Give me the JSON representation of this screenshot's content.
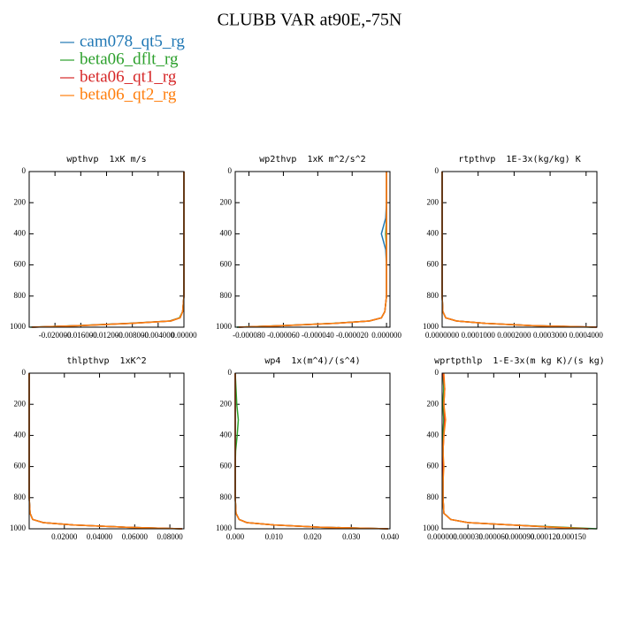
{
  "title": "CLUBB VAR at90E,-75N",
  "legend": [
    {
      "name": "cam078_qt5_rg",
      "color": "#1f77b4"
    },
    {
      "name": "beta06_dflt_rg",
      "color": "#2ca02c"
    },
    {
      "name": "beta06_qt1_rg",
      "color": "#d62728"
    },
    {
      "name": "beta06_qt2_rg",
      "color": "#ff7f0e"
    }
  ],
  "y": [
    0,
    100,
    200,
    300,
    400,
    500,
    600,
    700,
    800,
    900,
    940,
    960,
    975,
    990,
    1000
  ],
  "chart_data": [
    {
      "type": "line",
      "title": "wpthvp  1xK m/s",
      "xlim": [
        -0.024,
        0
      ],
      "ylim": [
        0,
        1000
      ],
      "invert_y": true,
      "xticks": [
        {
          "value": -0.02,
          "label": "-0.020000"
        },
        {
          "value": -0.016,
          "label": "-0.016000"
        },
        {
          "value": -0.012,
          "label": "-0.012000"
        },
        {
          "value": -0.008,
          "label": "-0.008000"
        },
        {
          "value": -0.004,
          "label": "-0.004000"
        },
        {
          "value": 0,
          "label": "0.00000"
        }
      ],
      "yticks": [
        0,
        200,
        400,
        600,
        800,
        1000
      ],
      "series": [
        {
          "values": [
            0,
            0,
            0,
            0,
            0,
            0,
            0,
            0,
            0,
            -0.0002,
            -0.0006,
            -0.002,
            -0.008,
            -0.016,
            -0.0235
          ]
        },
        {
          "values": [
            0,
            0,
            0,
            0,
            0,
            0,
            0,
            0,
            0,
            -0.0002,
            -0.0007,
            -0.0022,
            -0.0085,
            -0.0165,
            -0.0238
          ]
        },
        {
          "values": [
            0,
            0,
            0,
            0,
            0,
            0,
            0,
            0,
            0,
            -0.0002,
            -0.0006,
            -0.0021,
            -0.0082,
            -0.0162,
            -0.0236
          ]
        },
        {
          "values": [
            0,
            0,
            0,
            0,
            0,
            0,
            0,
            0,
            0,
            -0.0002,
            -0.0006,
            -0.002,
            -0.008,
            -0.016,
            -0.0235
          ]
        }
      ]
    },
    {
      "type": "line",
      "title": "wp2thvp  1xK m^2/s^2",
      "xlim": [
        -8.8e-05,
        2e-06
      ],
      "ylim": [
        0,
        1000
      ],
      "invert_y": true,
      "xticks": [
        {
          "value": -8e-05,
          "label": "-0.000080"
        },
        {
          "value": -6e-05,
          "label": "-0.000060"
        },
        {
          "value": -4e-05,
          "label": "-0.000040"
        },
        {
          "value": -2e-05,
          "label": "-0.000020"
        },
        {
          "value": 0,
          "label": "0.000000"
        }
      ],
      "yticks": [
        0,
        200,
        400,
        600,
        800,
        1000
      ],
      "series": [
        {
          "values": [
            0,
            0,
            0,
            -5e-07,
            -3e-06,
            -5e-07,
            0,
            0,
            0,
            -1e-06,
            -3e-06,
            -1e-05,
            -3e-05,
            -6e-05,
            -8.7e-05
          ]
        },
        {
          "values": [
            0,
            0,
            0,
            0,
            -5e-07,
            0,
            0,
            0,
            0,
            -1e-06,
            -3e-06,
            -1e-05,
            -3.1e-05,
            -6.1e-05,
            -8.7e-05
          ]
        },
        {
          "values": [
            0,
            0,
            0,
            0,
            0,
            0,
            0,
            0,
            0,
            -1e-06,
            -3e-06,
            -1e-05,
            -3e-05,
            -6e-05,
            -8.6e-05
          ]
        },
        {
          "values": [
            0,
            0,
            0,
            0,
            0,
            0,
            0,
            0,
            0,
            -1e-06,
            -3e-06,
            -1e-05,
            -3e-05,
            -6e-05,
            -8.6e-05
          ]
        }
      ]
    },
    {
      "type": "line",
      "title": "rtpthvp  1E-3x(kg/kg) K",
      "xlim": [
        0,
        0.00043
      ],
      "ylim": [
        0,
        1000
      ],
      "invert_y": true,
      "xticks": [
        {
          "value": 0,
          "label": "0.0000000"
        },
        {
          "value": 0.0001,
          "label": "0.0001000"
        },
        {
          "value": 0.0002,
          "label": "0.0002000"
        },
        {
          "value": 0.0003,
          "label": "0.0003000"
        },
        {
          "value": 0.0004,
          "label": "0.0004000"
        }
      ],
      "yticks": [
        0,
        200,
        400,
        600,
        800,
        1000
      ],
      "series": [
        {
          "values": [
            0,
            0,
            0,
            0,
            0,
            0,
            0,
            0,
            0,
            2e-06,
            1e-05,
            4e-05,
            0.00012,
            0.00025,
            0.00043
          ]
        },
        {
          "values": [
            0,
            0,
            0,
            0,
            0,
            0,
            0,
            0,
            0,
            2e-06,
            1e-05,
            4e-05,
            0.00012,
            0.00025,
            0.00042
          ]
        },
        {
          "values": [
            0,
            0,
            0,
            0,
            0,
            0,
            0,
            0,
            0,
            2e-06,
            1e-05,
            4e-05,
            0.00012,
            0.00025,
            0.00043
          ]
        },
        {
          "values": [
            0,
            0,
            0,
            0,
            0,
            0,
            0,
            0,
            0,
            2e-06,
            1e-05,
            4e-05,
            0.00012,
            0.00025,
            0.00043
          ]
        }
      ]
    },
    {
      "type": "line",
      "title": "thlpthvp  1xK^2",
      "xlim": [
        0,
        0.088
      ],
      "ylim": [
        0,
        1000
      ],
      "invert_y": true,
      "xticks": [
        {
          "value": 0.02,
          "label": "0.02000"
        },
        {
          "value": 0.04,
          "label": "0.04000"
        },
        {
          "value": 0.06,
          "label": "0.06000"
        },
        {
          "value": 0.08,
          "label": "0.08000"
        }
      ],
      "yticks": [
        0,
        200,
        400,
        600,
        800,
        1000
      ],
      "series": [
        {
          "values": [
            0,
            0,
            0,
            0,
            0,
            0,
            0,
            0,
            0,
            0.0005,
            0.002,
            0.008,
            0.025,
            0.055,
            0.087
          ]
        },
        {
          "values": [
            0,
            0,
            0,
            0,
            0,
            0,
            0,
            0,
            0,
            0.0005,
            0.002,
            0.008,
            0.025,
            0.055,
            0.086
          ]
        },
        {
          "values": [
            0,
            0,
            0,
            0,
            0,
            0,
            0,
            0,
            0,
            0.0005,
            0.002,
            0.008,
            0.025,
            0.055,
            0.087
          ]
        },
        {
          "values": [
            0,
            0,
            0,
            0,
            0,
            0,
            0,
            0,
            0,
            0.0005,
            0.002,
            0.008,
            0.025,
            0.055,
            0.087
          ]
        }
      ]
    },
    {
      "type": "line",
      "title": "wp4  1x(m^4)/(s^4)",
      "xlim": [
        0,
        0.04
      ],
      "ylim": [
        0,
        1000
      ],
      "invert_y": true,
      "xticks": [
        {
          "value": 0,
          "label": "0.000"
        },
        {
          "value": 0.01,
          "label": "0.010"
        },
        {
          "value": 0.02,
          "label": "0.020"
        },
        {
          "value": 0.03,
          "label": "0.030"
        },
        {
          "value": 0.04,
          "label": "0.040"
        }
      ],
      "yticks": [
        0,
        200,
        400,
        600,
        800,
        1000
      ],
      "series": [
        {
          "values": [
            0,
            0,
            0,
            0,
            0,
            0,
            0,
            0,
            0,
            0.0002,
            0.001,
            0.003,
            0.01,
            0.022,
            0.0395
          ]
        },
        {
          "values": [
            0,
            0.0002,
            0.0004,
            0.0008,
            0.0005,
            0.0001,
            0,
            0,
            0,
            0.0002,
            0.001,
            0.003,
            0.01,
            0.022,
            0.0395
          ]
        },
        {
          "values": [
            0,
            0,
            0,
            0,
            0,
            0,
            0,
            0,
            0,
            0.0002,
            0.001,
            0.003,
            0.01,
            0.022,
            0.0395
          ]
        },
        {
          "values": [
            0,
            0,
            0,
            0,
            0,
            0,
            0,
            0,
            0,
            0.0002,
            0.001,
            0.003,
            0.01,
            0.022,
            0.0395
          ]
        }
      ]
    },
    {
      "type": "line",
      "title": "wprtpthlp  1-E-3x(m kg K)/(s kg)",
      "xlim": [
        0,
        0.00018
      ],
      "ylim": [
        0,
        1000
      ],
      "invert_y": true,
      "xticks": [
        {
          "value": 0,
          "label": "0.000000"
        },
        {
          "value": 3e-05,
          "label": "0.000030"
        },
        {
          "value": 6e-05,
          "label": "0.000060"
        },
        {
          "value": 9e-05,
          "label": "0.000090"
        },
        {
          "value": 0.00012,
          "label": "0.000120"
        },
        {
          "value": 0.00015,
          "label": "0.000150"
        }
      ],
      "yticks": [
        0,
        200,
        400,
        600,
        800,
        1000
      ],
      "series": [
        {
          "values": [
            1e-06,
            2e-06,
            1e-06,
            2e-06,
            1e-06,
            1e-06,
            1e-06,
            1e-06,
            1e-06,
            2e-06,
            1e-05,
            3e-05,
            8e-05,
            0.00013,
            0.00017
          ]
        },
        {
          "values": [
            1e-06,
            2e-06,
            1e-06,
            2e-06,
            1e-06,
            1e-06,
            1e-06,
            1e-06,
            1e-06,
            2e-06,
            1e-05,
            3e-05,
            8e-05,
            0.00014,
            0.00018
          ]
        },
        {
          "values": [
            1e-06,
            3e-06,
            2e-06,
            3e-06,
            2e-06,
            1e-06,
            1e-06,
            1e-06,
            1e-06,
            2e-06,
            1e-05,
            3e-05,
            8e-05,
            0.00013,
            0.00017
          ]
        },
        {
          "values": [
            2e-06,
            3e-06,
            2e-06,
            4e-06,
            2e-06,
            1e-06,
            2e-06,
            1e-06,
            1e-06,
            2e-06,
            1e-05,
            3e-05,
            8e-05,
            0.00013,
            0.00017
          ]
        }
      ]
    }
  ]
}
